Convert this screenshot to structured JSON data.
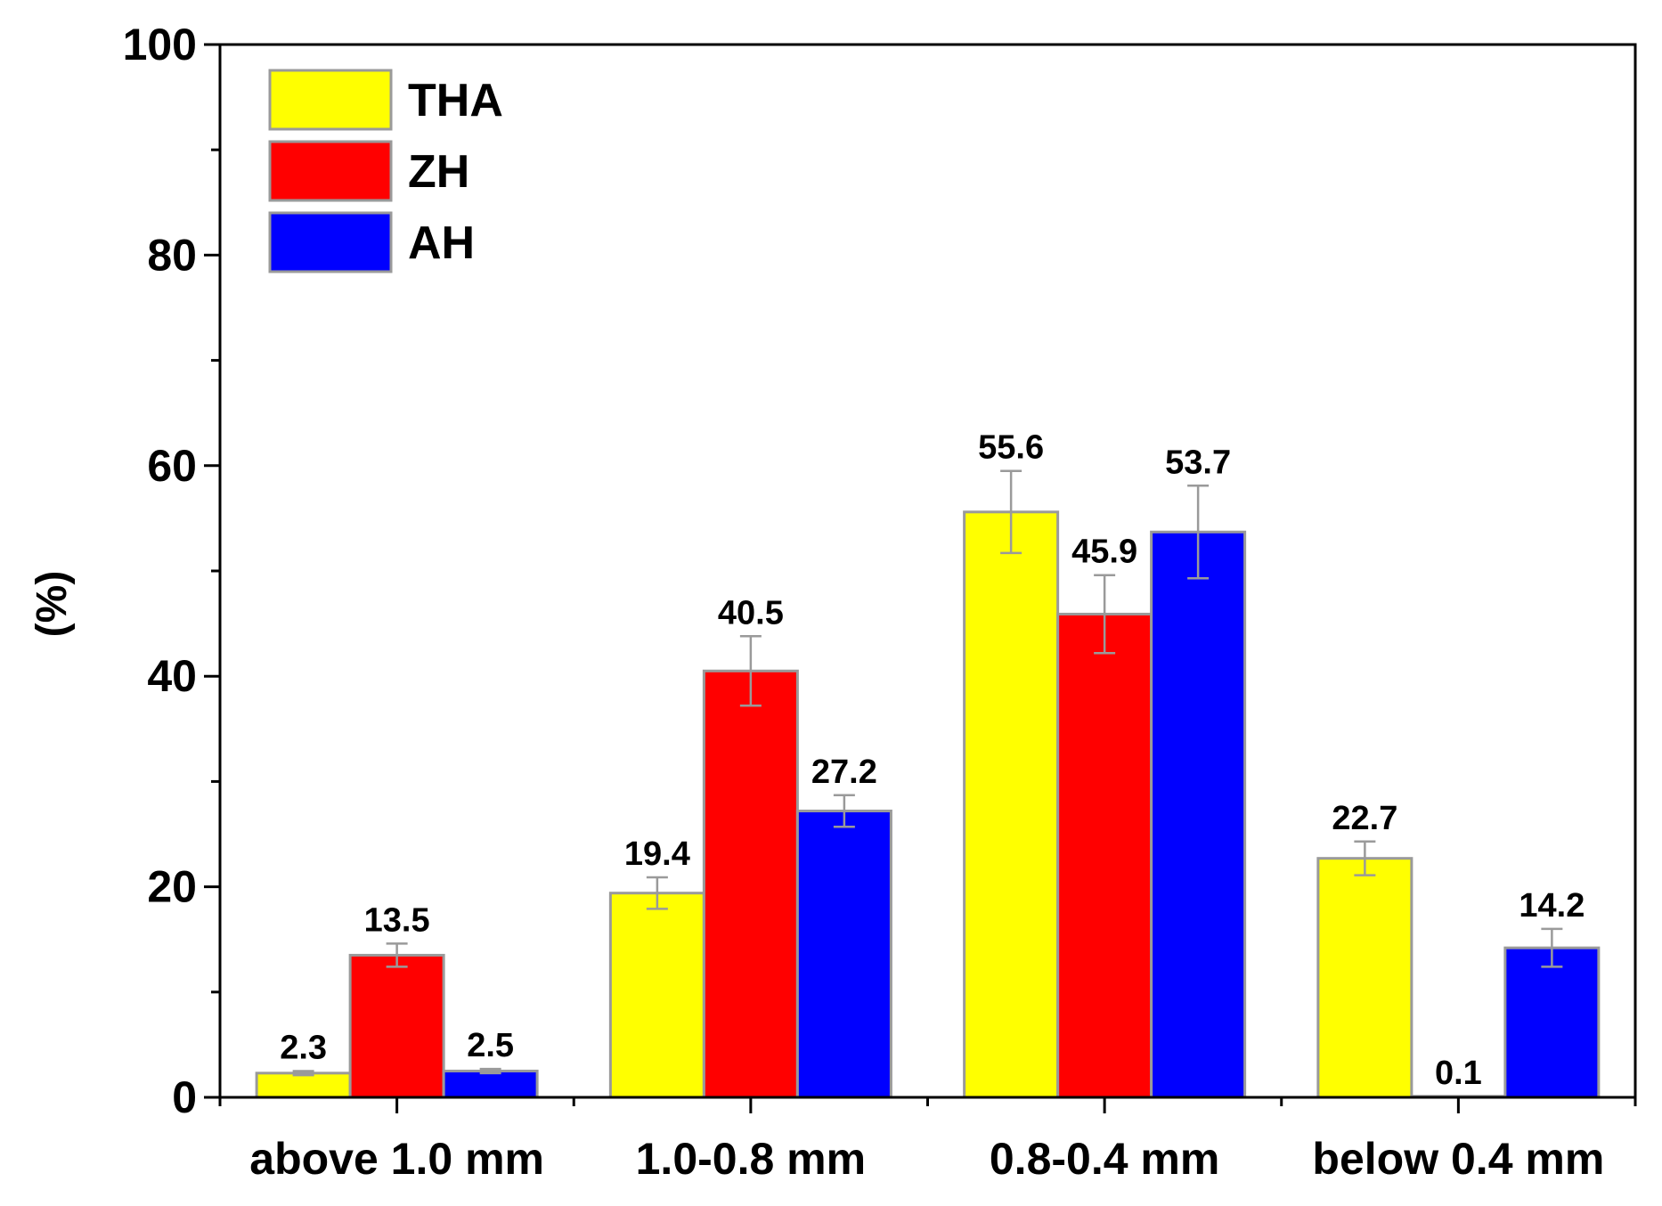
{
  "chart_data": {
    "type": "bar",
    "title": "",
    "xlabel": "",
    "ylabel": "(%)",
    "ylim": [
      0,
      100
    ],
    "yticks": [
      0,
      20,
      40,
      60,
      80,
      100
    ],
    "categories": [
      "above 1.0 mm",
      "1.0-0.8 mm",
      "0.8-0.4 mm",
      "below 0.4 mm"
    ],
    "series": [
      {
        "name": "THA",
        "color": "#ffff00",
        "values": [
          2.3,
          19.4,
          55.6,
          22.7
        ],
        "labels": [
          "2.3",
          "19.4",
          "55.6",
          "22.7"
        ],
        "errors": [
          0.2,
          1.5,
          3.9,
          1.6
        ]
      },
      {
        "name": "ZH",
        "color": "#ff0000",
        "values": [
          13.5,
          40.5,
          45.9,
          0.1
        ],
        "labels": [
          "13.5",
          "40.5",
          "45.9",
          "0.1"
        ],
        "errors": [
          1.1,
          3.3,
          3.7,
          0
        ]
      },
      {
        "name": "AH",
        "color": "#0000ff",
        "values": [
          2.5,
          27.2,
          53.7,
          14.2
        ],
        "labels": [
          "2.5",
          "27.2",
          "53.7",
          "14.2"
        ],
        "errors": [
          0.2,
          1.5,
          4.4,
          1.8
        ]
      }
    ],
    "legend": "top-left",
    "grid": false
  }
}
